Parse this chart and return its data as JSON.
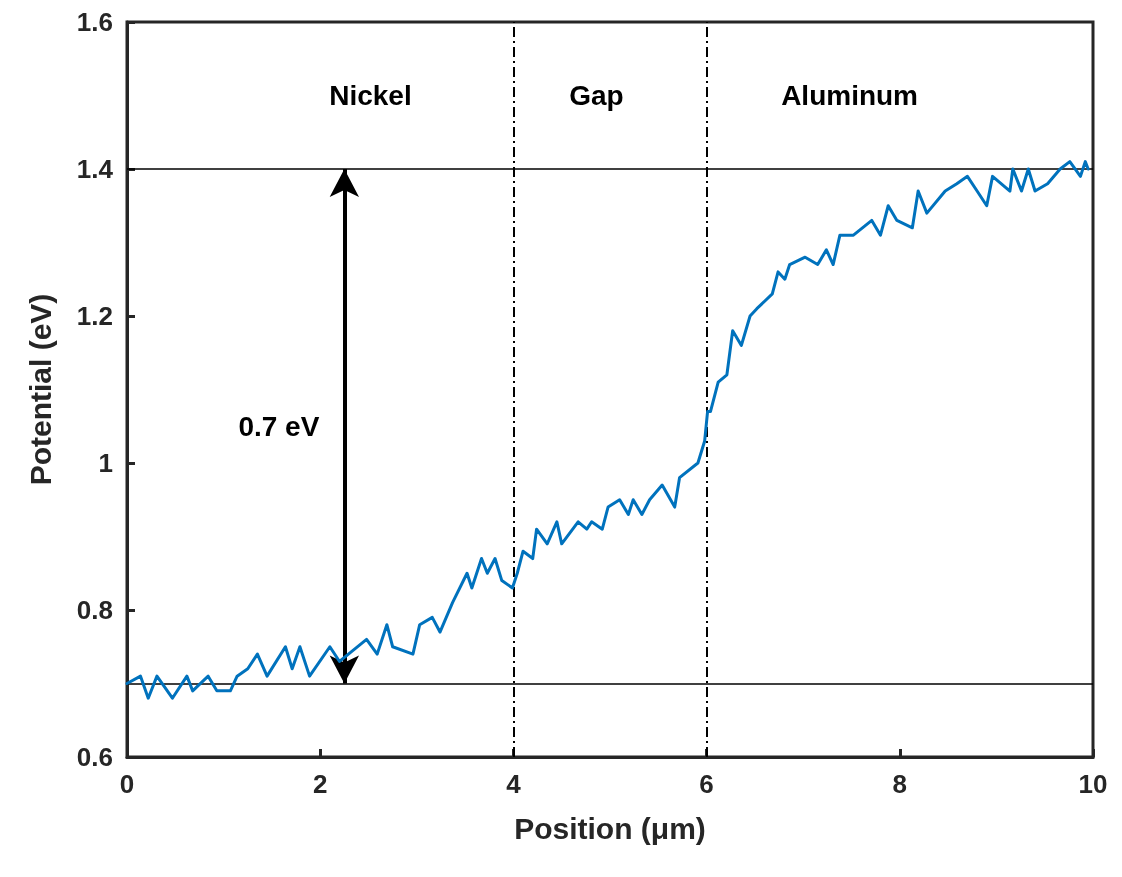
{
  "chart_data": {
    "type": "line",
    "xlabel": "Position (μm)",
    "ylabel": "Potential (eV)",
    "xlim": [
      0,
      10
    ],
    "xticks": [
      0,
      2,
      4,
      6,
      8,
      10
    ],
    "ylim": [
      0.6,
      1.6
    ],
    "yticks": [
      0.6,
      0.8,
      1,
      1.2,
      1.4,
      1.6
    ],
    "grid": false,
    "marker": "none",
    "line_style": "solid",
    "series": [
      {
        "color": "#0072bd",
        "x": [
          0,
          0.14,
          0.22,
          0.31,
          0.47,
          0.62,
          0.68,
          0.84,
          0.93,
          1.07,
          1.14,
          1.25,
          1.35,
          1.45,
          1.64,
          1.71,
          1.79,
          1.89,
          2.1,
          2.2,
          2.48,
          2.59,
          2.69,
          2.75,
          2.96,
          3.03,
          3.16,
          3.24,
          3.37,
          3.52,
          3.57,
          3.67,
          3.73,
          3.81,
          3.88,
          3.99,
          4.04,
          4.1,
          4.2,
          4.24,
          4.35,
          4.45,
          4.5,
          4.67,
          4.76,
          4.81,
          4.92,
          4.98,
          5.1,
          5.19,
          5.24,
          5.33,
          5.41,
          5.54,
          5.67,
          5.72,
          5.91,
          5.98,
          6.01,
          6.04,
          6.12,
          6.21,
          6.27,
          6.36,
          6.45,
          6.52,
          6.68,
          6.74,
          6.81,
          6.86,
          7.02,
          7.15,
          7.24,
          7.31,
          7.38,
          7.52,
          7.71,
          7.8,
          7.88,
          7.97,
          8.13,
          8.19,
          8.28,
          8.47,
          8.59,
          8.7,
          8.8,
          8.9,
          8.96,
          9.14,
          9.17,
          9.26,
          9.33,
          9.4,
          9.53,
          9.66,
          9.76,
          9.87,
          9.92,
          9.95
        ],
        "values": [
          0.7,
          0.71,
          0.68,
          0.71,
          0.68,
          0.71,
          0.69,
          0.71,
          0.69,
          0.69,
          0.71,
          0.72,
          0.74,
          0.71,
          0.75,
          0.72,
          0.75,
          0.71,
          0.75,
          0.73,
          0.76,
          0.74,
          0.78,
          0.75,
          0.74,
          0.78,
          0.79,
          0.77,
          0.81,
          0.85,
          0.83,
          0.87,
          0.85,
          0.87,
          0.84,
          0.83,
          0.85,
          0.88,
          0.87,
          0.91,
          0.89,
          0.92,
          0.89,
          0.92,
          0.91,
          0.92,
          0.91,
          0.94,
          0.95,
          0.93,
          0.95,
          0.93,
          0.95,
          0.97,
          0.94,
          0.98,
          1.0,
          1.03,
          1.07,
          1.07,
          1.11,
          1.12,
          1.18,
          1.16,
          1.2,
          1.21,
          1.23,
          1.26,
          1.25,
          1.27,
          1.28,
          1.27,
          1.29,
          1.27,
          1.31,
          1.31,
          1.33,
          1.31,
          1.35,
          1.33,
          1.32,
          1.37,
          1.34,
          1.37,
          1.38,
          1.39,
          1.37,
          1.35,
          1.39,
          1.37,
          1.4,
          1.37,
          1.4,
          1.37,
          1.38,
          1.4,
          1.41,
          1.39,
          1.41,
          1.4
        ]
      }
    ],
    "ref_lines": [
      {
        "axis": "y",
        "value": 0.7,
        "color": "#000000",
        "line_style": "solid"
      },
      {
        "axis": "y",
        "value": 1.4,
        "color": "#000000",
        "line_style": "solid"
      },
      {
        "axis": "x",
        "value": 4,
        "color": "#000000",
        "line_style": "dashed"
      },
      {
        "axis": "x",
        "value": 6,
        "color": "#000000",
        "line_style": "dashed"
      }
    ],
    "annotations": [
      "Nickel",
      "Gap",
      "Aluminum",
      "0.7 eV"
    ]
  }
}
